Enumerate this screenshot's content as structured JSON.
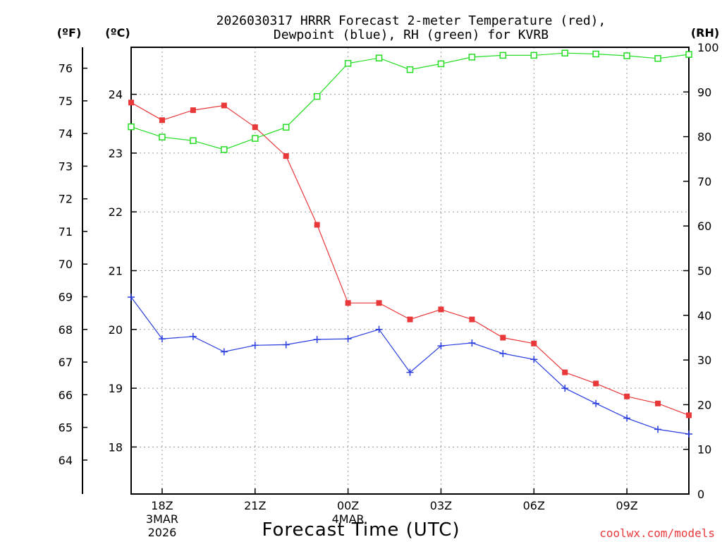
{
  "chart_data": {
    "type": "line",
    "title_line1": "2026030317 HRRR Forecast 2-meter Temperature (red),",
    "title_line2": "Dewpoint (blue), RH (green) for KVRB",
    "xlabel": "Forecast Time (UTC)",
    "credit": "coolwx.com/models",
    "units": {
      "fahrenheit": "(ºF)",
      "celsius": "(ºC)",
      "rh": "(RH)"
    },
    "x_hours": [
      17,
      18,
      19,
      20,
      21,
      22,
      23,
      24,
      25,
      26,
      27,
      28,
      29,
      30,
      31,
      32,
      33,
      34,
      35
    ],
    "xlim": [
      17,
      35
    ],
    "x_ticks": [
      {
        "hour": 18,
        "label": "18Z",
        "sub1": "3MAR",
        "sub2": "2026"
      },
      {
        "hour": 21,
        "label": "21Z",
        "sub1": "",
        "sub2": ""
      },
      {
        "hour": 24,
        "label": "00Z",
        "sub1": "4MAR",
        "sub2": ""
      },
      {
        "hour": 27,
        "label": "03Z",
        "sub1": "",
        "sub2": ""
      },
      {
        "hour": 30,
        "label": "06Z",
        "sub1": "",
        "sub2": ""
      },
      {
        "hour": 33,
        "label": "09Z",
        "sub1": "",
        "sub2": ""
      }
    ],
    "celsius_ylim": [
      17.2,
      24.8
    ],
    "celsius_ticks": [
      18,
      19,
      20,
      21,
      22,
      23,
      24
    ],
    "fahrenheit_ticks": [
      64,
      65,
      66,
      67,
      68,
      69,
      70,
      71,
      72,
      73,
      74,
      75,
      76
    ],
    "rh_ylim": [
      0,
      100
    ],
    "rh_ticks": [
      0,
      10,
      20,
      30,
      40,
      50,
      60,
      70,
      80,
      90,
      100
    ],
    "series": [
      {
        "name": "Temperature",
        "unit": "C",
        "color": "#e8383a",
        "marker": "filled-square",
        "values": [
          23.86,
          23.56,
          23.73,
          23.81,
          23.44,
          22.95,
          21.78,
          20.45,
          20.45,
          20.17,
          20.34,
          20.17,
          19.86,
          19.76,
          19.27,
          19.08,
          18.86,
          18.74,
          18.54
        ]
      },
      {
        "name": "Dewpoint",
        "unit": "C",
        "color": "#2a3ee0",
        "marker": "plus",
        "values": [
          20.55,
          19.84,
          19.88,
          19.62,
          19.73,
          19.74,
          19.83,
          19.84,
          20.0,
          19.27,
          19.72,
          19.77,
          19.59,
          19.49,
          19.0,
          18.74,
          18.49,
          18.3,
          18.22
        ]
      },
      {
        "name": "RH",
        "unit": "%",
        "color": "#22dd22",
        "marker": "open-square",
        "values": [
          82.2,
          79.9,
          79.1,
          77.1,
          79.6,
          82.1,
          89.0,
          96.4,
          97.6,
          95.0,
          96.3,
          97.8,
          98.2,
          98.2,
          98.7,
          98.5,
          98.1,
          97.5,
          98.4
        ]
      }
    ]
  }
}
